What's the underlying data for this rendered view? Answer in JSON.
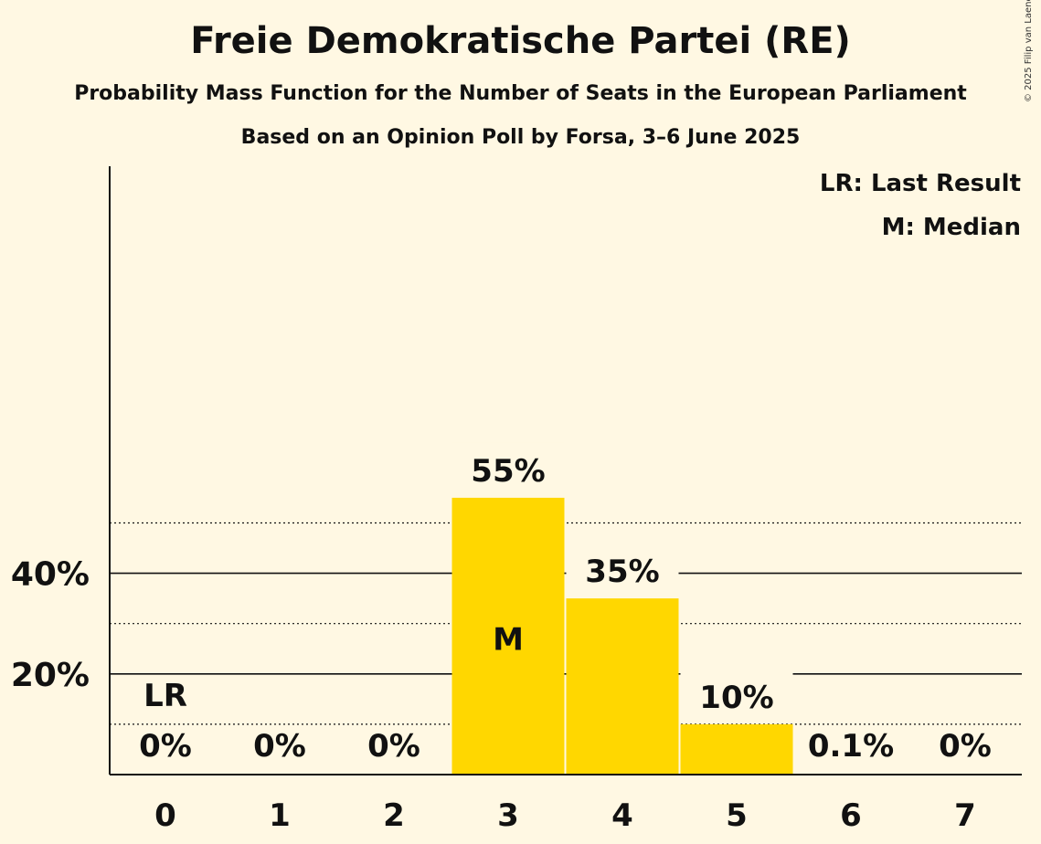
{
  "header": {
    "title": "Freie Demokratische Partei (RE)",
    "subtitle": "Probability Mass Function for the Number of Seats in the European Parliament",
    "subtitle2": "Based on an Opinion Poll by Forsa, 3–6 June 2025",
    "copyright": "© 2025 Filip van Laenen"
  },
  "legend": {
    "lr": "LR: Last Result",
    "median": "M: Median"
  },
  "chart_data": {
    "type": "bar",
    "title": "Freie Demokratische Partei (RE)",
    "categories": [
      "0",
      "1",
      "2",
      "3",
      "4",
      "5",
      "6",
      "7"
    ],
    "values": [
      0,
      0,
      0,
      55,
      35,
      10,
      0.1,
      0
    ],
    "value_labels": [
      "0%",
      "0%",
      "0%",
      "55%",
      "35%",
      "10%",
      "0.1%",
      "0%"
    ],
    "ylim": [
      0,
      60
    ],
    "y_ticks": [
      20,
      40
    ],
    "y_tick_labels": [
      "20%",
      "40%"
    ],
    "minor_gridlines": [
      10,
      30,
      50
    ],
    "last_result_category": "0",
    "last_result_marker": "LR",
    "median_category": "3",
    "median_marker": "M",
    "bar_color": "#FFD700",
    "legend_position": "top-right"
  }
}
